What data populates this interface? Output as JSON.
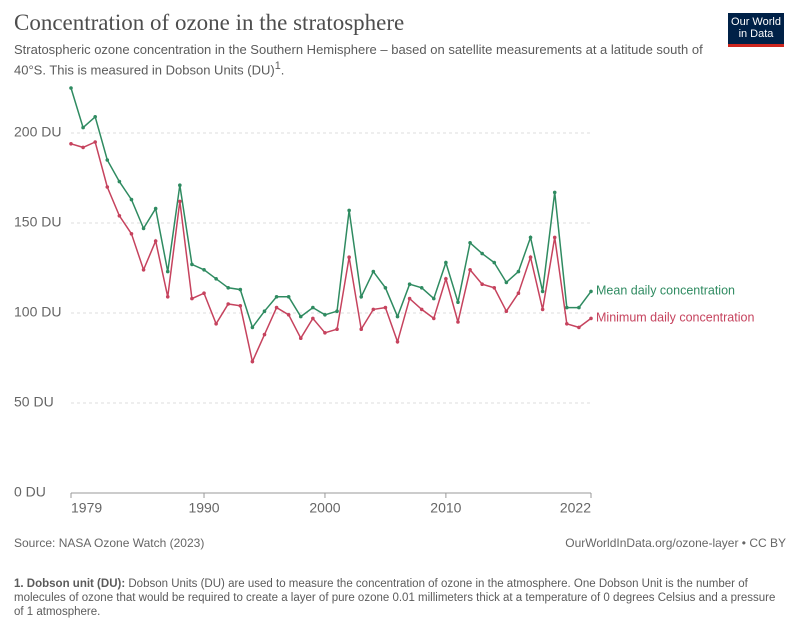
{
  "chart_data": {
    "type": "line",
    "title": "Concentration of ozone in the stratosphere",
    "subtitle": "Stratospheric ozone concentration in the Southern Hemisphere – based on satellite measurements at a latitude south of 40°S. This is measured in Dobson Units (DU)",
    "subtitle_note": "1",
    "x": [
      1979,
      1980,
      1981,
      1982,
      1983,
      1984,
      1985,
      1986,
      1987,
      1988,
      1989,
      1990,
      1991,
      1992,
      1993,
      1994,
      1995,
      1996,
      1997,
      1998,
      1999,
      2000,
      2001,
      2002,
      2003,
      2004,
      2005,
      2006,
      2007,
      2008,
      2009,
      2010,
      2011,
      2012,
      2013,
      2014,
      2015,
      2016,
      2017,
      2018,
      2019,
      2020,
      2021,
      2022
    ],
    "series": [
      {
        "name": "Mean daily concentration",
        "color": "#2f8b61",
        "values": [
          225,
          203,
          209,
          185,
          173,
          163,
          147,
          158,
          123,
          171,
          127,
          124,
          119,
          114,
          113,
          92,
          101,
          109,
          109,
          98,
          103,
          99,
          101,
          157,
          109,
          123,
          114,
          98,
          116,
          114,
          108,
          128,
          106,
          139,
          133,
          128,
          117,
          123,
          142,
          112,
          167,
          103,
          103,
          112
        ]
      },
      {
        "name": "Minimum daily concentration",
        "color": "#c6435e",
        "values": [
          194,
          192,
          195,
          170,
          154,
          144,
          124,
          140,
          109,
          162,
          108,
          111,
          94,
          105,
          104,
          73,
          88,
          103,
          99,
          86,
          97,
          89,
          91,
          131,
          91,
          102,
          103,
          84,
          108,
          102,
          97,
          119,
          95,
          124,
          116,
          114,
          101,
          111,
          131,
          102,
          142,
          94,
          92,
          97
        ]
      }
    ],
    "xlim": [
      1979,
      2022
    ],
    "xticks": [
      1979,
      1990,
      2000,
      2010,
      2022
    ],
    "ylim": [
      0,
      225
    ],
    "yticks": [
      {
        "value": 0,
        "label": "0 DU"
      },
      {
        "value": 50,
        "label": "50 DU"
      },
      {
        "value": 100,
        "label": "100 DU"
      },
      {
        "value": 150,
        "label": "150 DU"
      },
      {
        "value": 200,
        "label": "200 DU"
      }
    ],
    "grid": true,
    "source": "Source: NASA Ozone Watch (2023)",
    "license": "OurWorldInData.org/ozone-layer • CC BY",
    "logo": [
      "Our World",
      "in Data"
    ],
    "note": {
      "marker": "1.",
      "term": "Dobson unit (DU):",
      "text": "Dobson Units (DU) are used to measure the concentration of ozone in the atmosphere. One Dobson Unit is the number of molecules of ozone that would be required to create a layer of pure ozone 0.01 millimeters thick at a temperature of 0 degrees Celsius and a pressure of 1 atmosphere."
    }
  }
}
